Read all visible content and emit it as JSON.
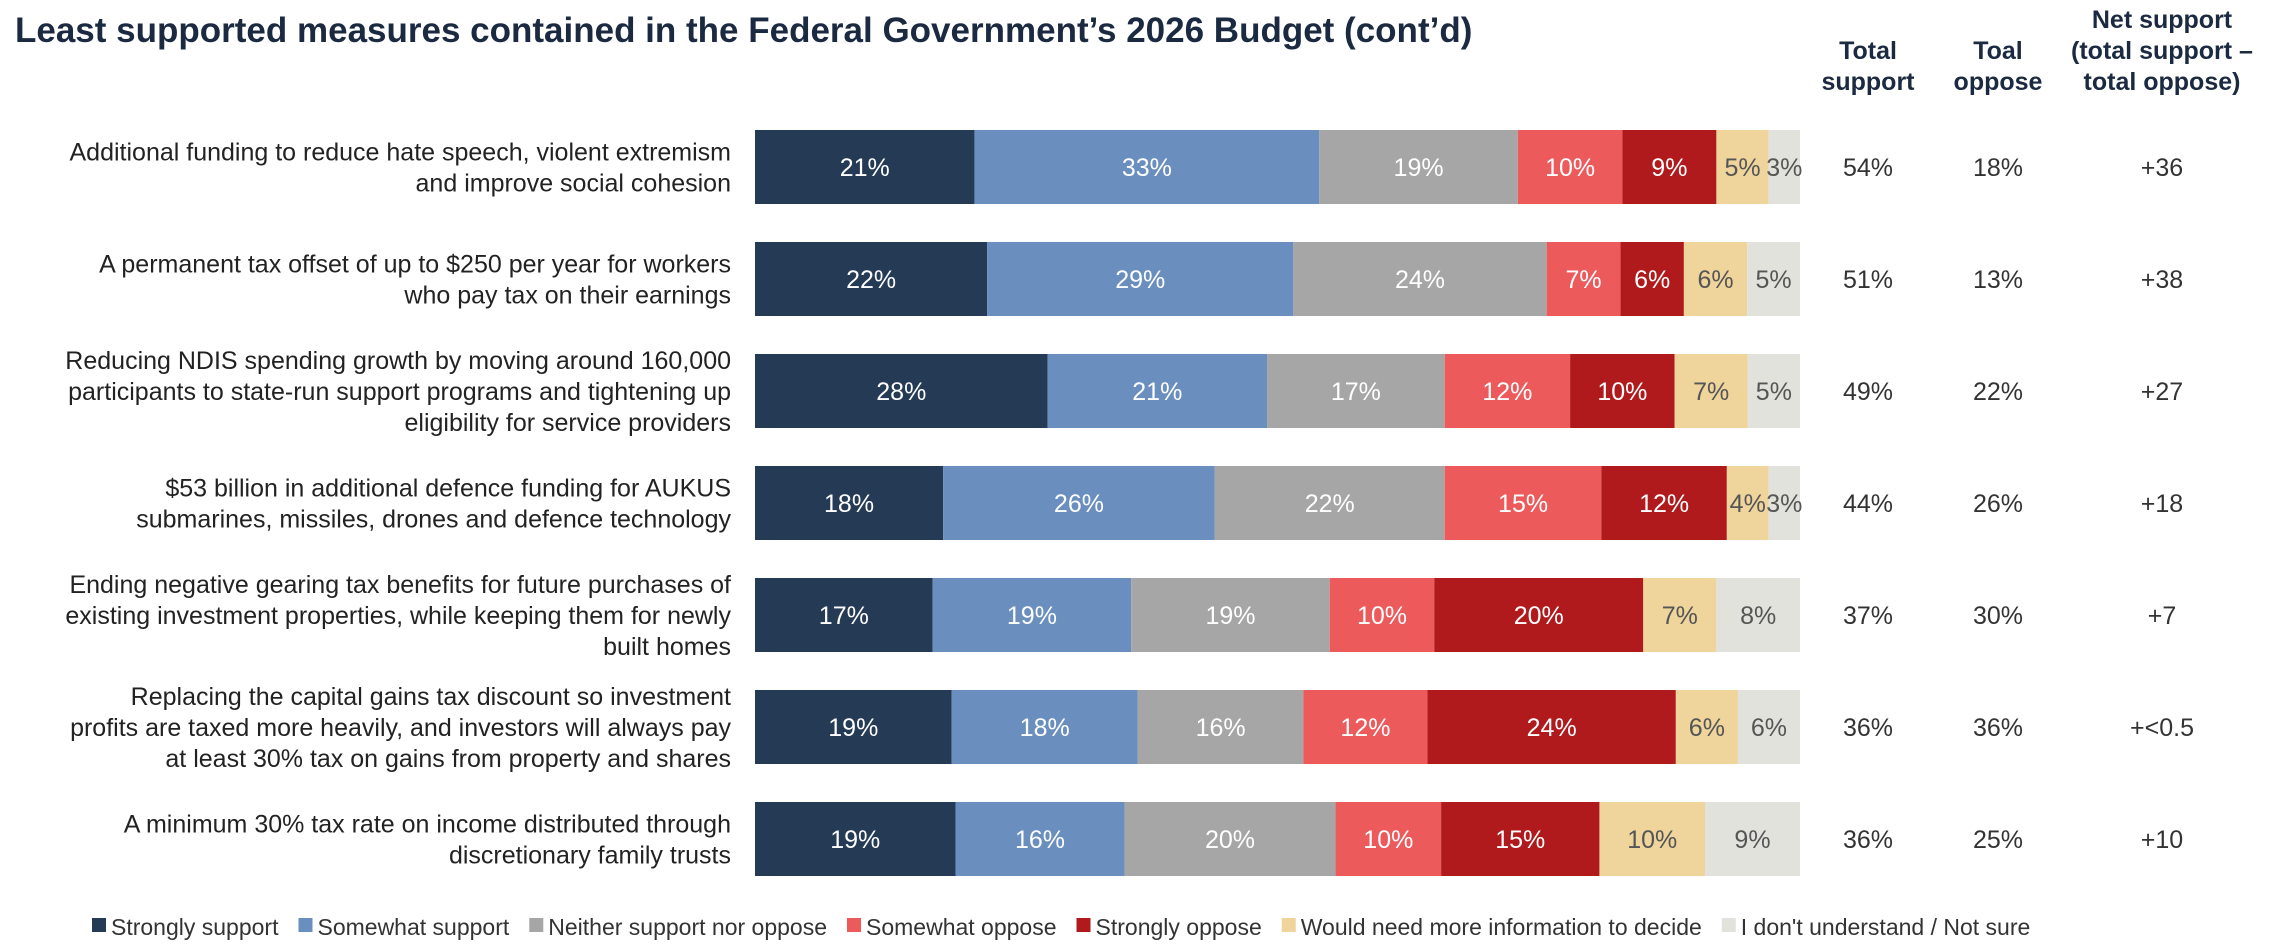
{
  "chart_data": {
    "type": "bar",
    "orientation": "horizontal",
    "stacked": true,
    "title": "Least supported measures contained in the Federal Government’s 2026 Budget (cont’d)",
    "categories": [
      "Additional funding to reduce hate speech, violent extremism and improve social cohesion",
      "A permanent tax offset of up to $250 per year for workers who pay tax on their earnings",
      "Reducing NDIS spending growth by moving around 160,000 participants to state-run support programs and tightening up eligibility for service providers",
      "$53 billion in additional defence funding for AUKUS submarines, missiles, drones and defence technology",
      "Ending negative gearing tax benefits for future purchases of existing investment properties, while keeping them for newly built homes",
      "Replacing the capital gains tax discount so investment profits are taxed more heavily, and investors will always pay at least 30% tax on gains from property and shares",
      "A minimum 30% tax rate on income distributed through discretionary family trusts"
    ],
    "category_lines": [
      [
        "Additional funding to reduce hate speech, violent extremism",
        "and improve social cohesion"
      ],
      [
        "A permanent tax offset of up to $250 per year for workers",
        "who pay tax on their earnings"
      ],
      [
        "Reducing NDIS spending growth by moving around 160,000",
        "participants to state-run support programs and tightening up",
        "eligibility for service providers"
      ],
      [
        "$53 billion in additional defence funding for AUKUS",
        "submarines, missiles, drones and defence technology"
      ],
      [
        "Ending negative gearing tax benefits for future purchases of",
        "existing investment properties, while keeping them for newly",
        "built homes"
      ],
      [
        "Replacing the capital gains tax discount so investment",
        "profits are taxed more heavily, and investors will always pay",
        "at least 30% tax on gains from property and shares"
      ],
      [
        "A minimum 30% tax rate on income distributed through",
        "discretionary family trusts"
      ]
    ],
    "series": [
      {
        "name": "Strongly support",
        "color": "#243a55",
        "label_color": "#ffffff",
        "values": [
          21,
          22,
          28,
          18,
          17,
          19,
          19
        ]
      },
      {
        "name": "Somewhat support",
        "color": "#6a8fbe",
        "label_color": "#ffffff",
        "values": [
          33,
          29,
          21,
          26,
          19,
          18,
          16
        ]
      },
      {
        "name": "Neither support nor oppose",
        "color": "#a6a6a6",
        "label_color": "#ffffff",
        "values": [
          19,
          24,
          17,
          22,
          19,
          16,
          20
        ]
      },
      {
        "name": "Somewhat oppose",
        "color": "#ec5a5c",
        "label_color": "#ffffff",
        "values": [
          10,
          7,
          12,
          15,
          10,
          12,
          10
        ]
      },
      {
        "name": "Strongly oppose",
        "color": "#b01a1c",
        "label_color": "#ffffff",
        "values": [
          9,
          6,
          10,
          12,
          20,
          24,
          15
        ]
      },
      {
        "name": "Would need more information to decide",
        "color": "#efd49c",
        "label_color": "#555555",
        "values": [
          5,
          6,
          7,
          4,
          7,
          6,
          10
        ]
      },
      {
        "name": "I don't understand / Not sure",
        "color": "#e2e2dc",
        "label_color": "#555555",
        "values": [
          3,
          5,
          5,
          3,
          8,
          6,
          9
        ]
      }
    ],
    "value_suffix": "%",
    "columns": [
      {
        "header_lines": [
          "Total",
          "support"
        ],
        "values": [
          "54%",
          "51%",
          "49%",
          "44%",
          "37%",
          "36%",
          "36%"
        ]
      },
      {
        "header_lines": [
          "Toal",
          "oppose"
        ],
        "values": [
          "18%",
          "13%",
          "22%",
          "26%",
          "30%",
          "36%",
          "25%"
        ]
      },
      {
        "header_lines": [
          "Net support",
          "(total support –",
          "total oppose)"
        ],
        "values": [
          "+36",
          "+38",
          "+27",
          "+18",
          "+7",
          "+<0.5",
          "+10"
        ]
      }
    ],
    "legend_position": "bottom",
    "grid": false
  }
}
